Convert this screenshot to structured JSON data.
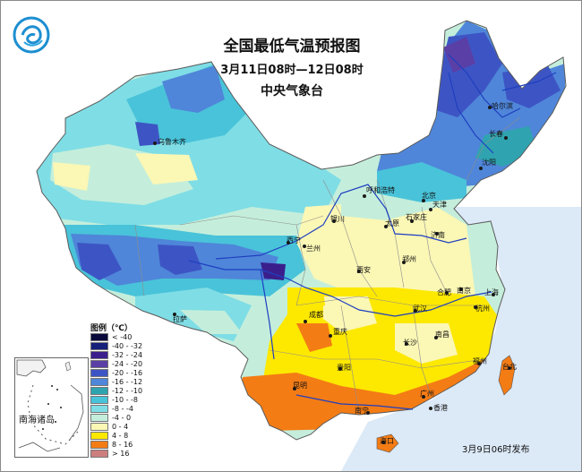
{
  "title": {
    "main": "全国最低气温预报图",
    "period": "3月11日08时—12日08时",
    "issuer": "中央气象台"
  },
  "logo_icon": "cma-logo-icon",
  "legend": {
    "title": "图例（℃）",
    "items": [
      {
        "label": "< -40",
        "color": "#0a0a3c"
      },
      {
        "label": "-40 - -32",
        "color": "#14207a"
      },
      {
        "label": "-32 - -24",
        "color": "#3a1f8c"
      },
      {
        "label": "-24 - -20",
        "color": "#5a3fa6"
      },
      {
        "label": "-20 - -16",
        "color": "#3d55c4"
      },
      {
        "label": "-16 - -12",
        "color": "#4f86d9"
      },
      {
        "label": "-12 - -10",
        "color": "#2fa4b0"
      },
      {
        "label": "-10 - -8",
        "color": "#49c3d9"
      },
      {
        "label": "-8 - -4",
        "color": "#7fdde5"
      },
      {
        "label": "-4 - 0",
        "color": "#c4eedb"
      },
      {
        "label": "0 - 4",
        "color": "#fbf7b5"
      },
      {
        "label": "4 - 8",
        "color": "#fde800"
      },
      {
        "label": "8 - 16",
        "color": "#f47c15"
      },
      {
        "label": "> 16",
        "color": "#cc7f7f"
      }
    ]
  },
  "cities": [
    {
      "name": "哈尔滨"
    },
    {
      "name": "长春"
    },
    {
      "name": "沈阳"
    },
    {
      "name": "乌鲁木齐"
    },
    {
      "name": "呼和浩特"
    },
    {
      "name": "北京"
    },
    {
      "name": "天津"
    },
    {
      "name": "银川"
    },
    {
      "name": "太原"
    },
    {
      "name": "石家庄"
    },
    {
      "name": "济南"
    },
    {
      "name": "西宁"
    },
    {
      "name": "兰州"
    },
    {
      "name": "郑州"
    },
    {
      "name": "西安"
    },
    {
      "name": "合肥"
    },
    {
      "name": "南京"
    },
    {
      "name": "上海"
    },
    {
      "name": "杭州"
    },
    {
      "name": "武汉"
    },
    {
      "name": "成都"
    },
    {
      "name": "重庆"
    },
    {
      "name": "长沙"
    },
    {
      "name": "南昌"
    },
    {
      "name": "拉萨"
    },
    {
      "name": "贵阳"
    },
    {
      "name": "昆明"
    },
    {
      "name": "福州"
    },
    {
      "name": "台北"
    },
    {
      "name": "南宁"
    },
    {
      "name": "广州"
    },
    {
      "name": "香港"
    },
    {
      "name": "海口"
    }
  ],
  "inset": {
    "label": "南海诸岛"
  },
  "issued": "3月9日06时发布"
}
